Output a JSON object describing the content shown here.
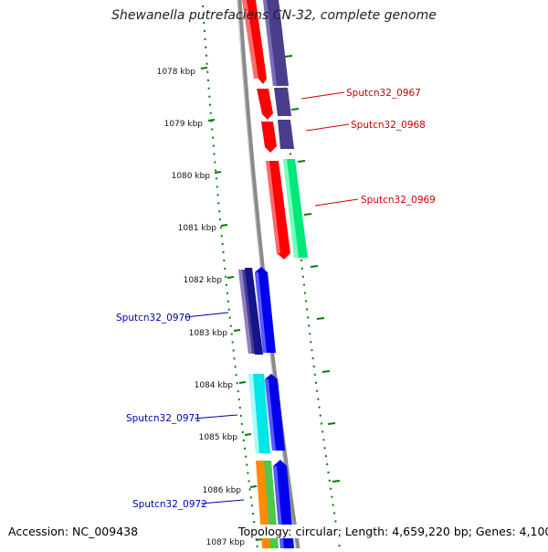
{
  "title": "Shewanella putrefaciens CN-32, complete genome",
  "accession": "Accession: NC_009438",
  "topology": "Topology: circular; Length: 4,659,220 bp; Genes: 4,100",
  "kbp_labels": [
    "1078 kbp",
    "1079 kbp",
    "1080 kbp",
    "1081 kbp",
    "1082 kbp",
    "1083 kbp",
    "1084 kbp",
    "1085 kbp",
    "1086 kbp",
    "1087 kbp"
  ],
  "gene_labels": {
    "g0967": "Sputcn32_0967",
    "g0968": "Sputcn32_0968",
    "g0969": "Sputcn32_0969",
    "g0970": "Sputcn32_0970",
    "g0971": "Sputcn32_0971",
    "g0972": "Sputcn32_0972"
  },
  "colors": {
    "red_label": "#cc0000",
    "blue_label": "#0000aa",
    "backbone": "#808080",
    "tick_green": "#0a7a0a",
    "red_gene": "#ff0000",
    "slate_gene": "#4b3c8c",
    "navy_gene": "#14148c",
    "blue_gene": "#0000ee",
    "seagreen_gene": "#00e87a",
    "cyan_gene": "#00e5e5",
    "orange_gene": "#ff8c00",
    "green_gene": "#4cc84c"
  }
}
